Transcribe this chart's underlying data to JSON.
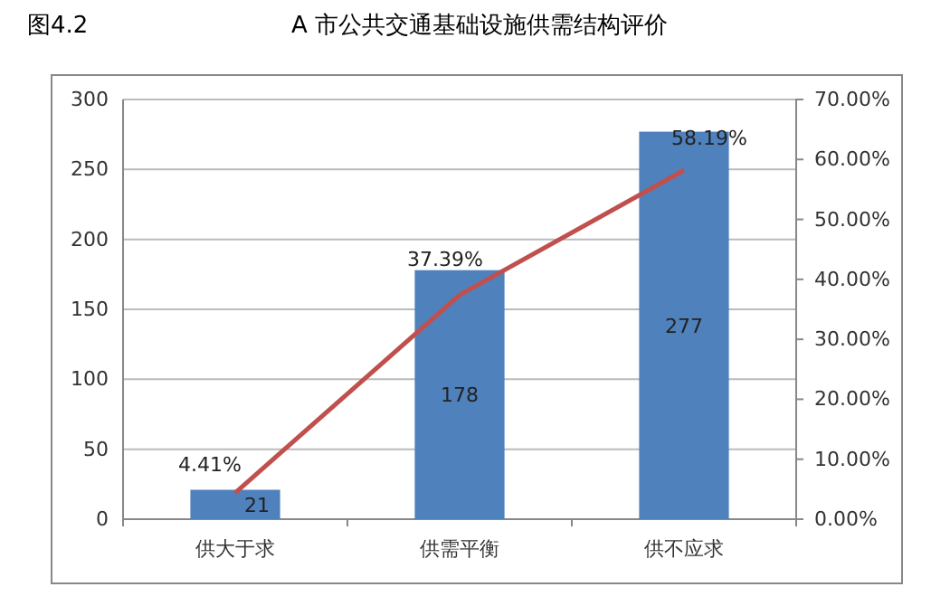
{
  "chart_data": {
    "type": "bar",
    "title": "A 市公共交通基础设施供需结构评价",
    "annotations": [
      "图4.2"
    ],
    "categories": [
      "供大于求",
      "供需平衡",
      "供不应求"
    ],
    "series": [
      {
        "color": "#4f81bd",
        "values": [
          21,
          178,
          277
        ],
        "value_labels": [
          "21",
          "178",
          "277"
        ]
      },
      {
        "type": "line",
        "axis": "y2",
        "color": "#c0504d",
        "values": [
          4.41,
          37.39,
          58.19
        ],
        "value_labels": [
          "4.41%",
          "37.39%",
          "58.19%"
        ]
      }
    ],
    "ylim": [
      0,
      300
    ],
    "yticks": [
      0,
      50,
      100,
      150,
      200,
      250,
      300
    ],
    "y2lim": [
      0,
      70
    ],
    "y2ticks": [
      {
        "value": 0,
        "label": "0.00%"
      },
      {
        "value": 10,
        "label": "10.00%"
      },
      {
        "value": 20,
        "label": "20.00%"
      },
      {
        "value": 30,
        "label": "30.00%"
      },
      {
        "value": 40,
        "label": "40.00%"
      },
      {
        "value": 50,
        "label": "50.00%"
      },
      {
        "value": 60,
        "label": "60.00%"
      },
      {
        "value": 70,
        "label": "70.00%"
      }
    ],
    "grid": "y",
    "marker": "none"
  }
}
